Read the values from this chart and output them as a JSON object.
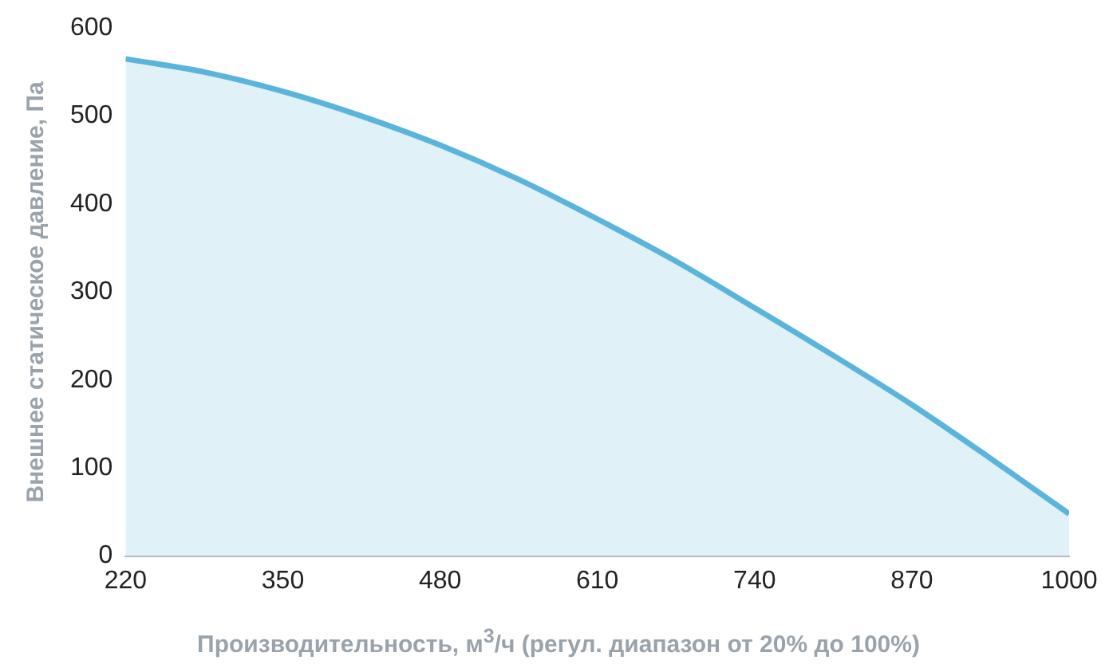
{
  "chart_data": {
    "type": "area",
    "xlabel": "Производительность, м$^{3}$/ч (регул. диапазон от 20% до 100%)",
    "ylabel": "Внешнее статическое давление, Па",
    "x": [
      220,
      285,
      350,
      415,
      480,
      545,
      610,
      675,
      740,
      805,
      870,
      935,
      1000
    ],
    "series": [
      {
        "color": "#5bb4dc",
        "values": [
          565,
          550,
          528,
          500,
          467,
          428,
          383,
          335,
          282,
          228,
          172,
          111,
          48
        ]
      }
    ],
    "xlim": [
      220,
      1000
    ],
    "xticks": [
      220,
      350,
      480,
      610,
      740,
      870,
      1000
    ],
    "ylim": [
      0,
      600
    ],
    "yticks": [
      0,
      100,
      200,
      300,
      400,
      500,
      600
    ],
    "grid": false,
    "legend": false,
    "marker": "none",
    "line_style": "solid"
  }
}
